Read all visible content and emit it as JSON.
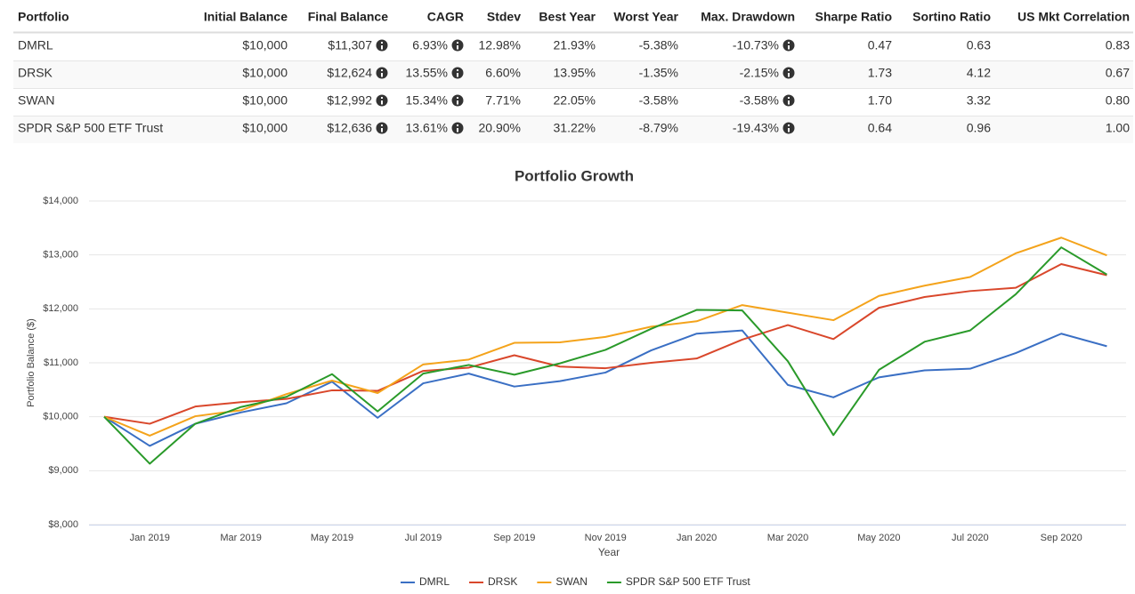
{
  "table": {
    "columns": [
      "Portfolio",
      "Initial Balance",
      "Final Balance",
      "CAGR",
      "Stdev",
      "Best Year",
      "Worst Year",
      "Max. Drawdown",
      "Sharpe Ratio",
      "Sortino Ratio",
      "US Mkt Correlation"
    ],
    "rows": [
      [
        "DMRL",
        "$10,000",
        "$11,307",
        "6.93%",
        "12.98%",
        "21.93%",
        "-5.38%",
        "-10.73%",
        "0.47",
        "0.63",
        "0.83"
      ],
      [
        "DRSK",
        "$10,000",
        "$12,624",
        "13.55%",
        "6.60%",
        "13.95%",
        "-1.35%",
        "-2.15%",
        "1.73",
        "4.12",
        "0.67"
      ],
      [
        "SWAN",
        "$10,000",
        "$12,992",
        "15.34%",
        "7.71%",
        "22.05%",
        "-3.58%",
        "-3.58%",
        "1.70",
        "3.32",
        "0.80"
      ],
      [
        "SPDR S&P 500 ETF Trust",
        "$10,000",
        "$12,636",
        "13.61%",
        "20.90%",
        "31.22%",
        "-8.79%",
        "-19.43%",
        "0.64",
        "0.96",
        "1.00"
      ]
    ]
  },
  "chart_data": {
    "type": "line",
    "title": "Portfolio Growth",
    "x_label": "Year",
    "y_label": "Portfolio Balance ($)",
    "categories": [
      null,
      "Jan 2019",
      null,
      "Mar 2019",
      null,
      "May 2019",
      null,
      "Jul 2019",
      null,
      "Sep 2019",
      null,
      "Nov 2019",
      null,
      "Jan 2020",
      null,
      "Mar 2020",
      null,
      "May 2020",
      null,
      "Jul 2020",
      null,
      "Sep 2020",
      null
    ],
    "series": [
      {
        "name": "DMRL",
        "color": "#3a6fc4",
        "values": [
          10000,
          9460,
          9870,
          10080,
          10250,
          10650,
          9980,
          10620,
          10800,
          10560,
          10660,
          10820,
          11230,
          11540,
          11600,
          10590,
          10360,
          10730,
          10860,
          10890,
          11180,
          11540,
          11307
        ]
      },
      {
        "name": "DRSK",
        "color": "#d9472b",
        "values": [
          10000,
          9870,
          10190,
          10270,
          10330,
          10490,
          10480,
          10850,
          10910,
          11140,
          10930,
          10900,
          11000,
          11080,
          11430,
          11700,
          11440,
          12020,
          12220,
          12330,
          12390,
          12830,
          12624
        ]
      },
      {
        "name": "SWAN",
        "color": "#f4a31b",
        "values": [
          10000,
          9650,
          10010,
          10120,
          10420,
          10670,
          10440,
          10970,
          11060,
          11370,
          11380,
          11480,
          11670,
          11770,
          12070,
          11930,
          11790,
          12240,
          12430,
          12590,
          13030,
          13320,
          12992
        ]
      },
      {
        "name": "SPDR S&P 500 ETF Trust",
        "color": "#2a9a2a",
        "values": [
          10000,
          9130,
          9870,
          10180,
          10370,
          10790,
          10100,
          10800,
          10960,
          10780,
          10990,
          11240,
          11630,
          11980,
          11970,
          11030,
          9660,
          10870,
          11390,
          11600,
          12270,
          13140,
          12636
        ]
      }
    ],
    "ylim": [
      8000,
      14000
    ],
    "yticks": [
      {
        "value": 8000,
        "label": "$8,000"
      },
      {
        "value": 9000,
        "label": "$9,000"
      },
      {
        "value": 10000,
        "label": "$10,000"
      },
      {
        "value": 11000,
        "label": "$11,000"
      },
      {
        "value": 12000,
        "label": "$12,000"
      },
      {
        "value": 13000,
        "label": "$13,000"
      },
      {
        "value": 14000,
        "label": "$14,000"
      }
    ],
    "grid": true,
    "legend": "bottom"
  }
}
